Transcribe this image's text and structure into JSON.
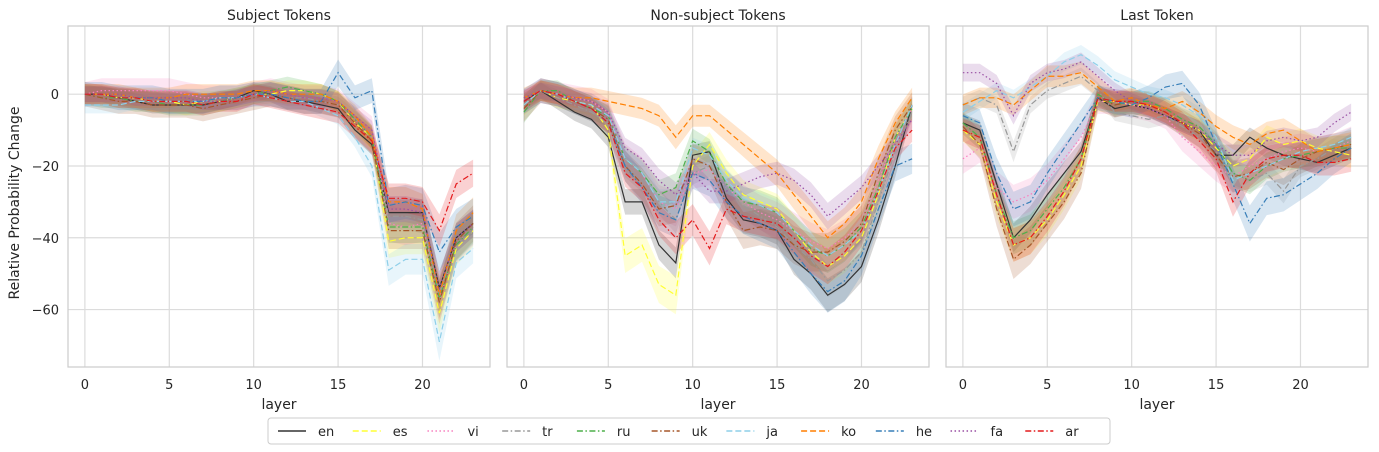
{
  "figure": {
    "ylabel": "Relative Probability Change",
    "xlabel": "layer"
  },
  "chart_data": [
    {
      "type": "line",
      "title": "Subject Tokens",
      "xlabel": "layer",
      "ylabel": "Relative Probability Change",
      "xlim": [
        -1,
        24
      ],
      "ylim": [
        -76,
        19
      ],
      "xticks": [
        0,
        5,
        10,
        15,
        20
      ],
      "yticks": [
        0,
        -20,
        -40,
        -60
      ],
      "grid": true,
      "x": [
        0,
        1,
        2,
        3,
        4,
        5,
        6,
        7,
        8,
        9,
        10,
        11,
        12,
        13,
        14,
        15,
        16,
        17,
        18,
        19,
        20,
        21,
        22,
        23
      ],
      "series": [
        {
          "name": "en",
          "values": [
            0,
            0,
            -1,
            -2,
            -3,
            -3,
            -3,
            -3,
            -2,
            -1,
            1,
            0,
            -2,
            -2,
            -3,
            -4,
            -10,
            -14,
            -33,
            -33,
            -33,
            -54,
            -40,
            -36
          ]
        },
        {
          "name": "es",
          "values": [
            0,
            0,
            -1,
            -1,
            -2,
            -2,
            -3,
            -2,
            -2,
            -1,
            0,
            0,
            1,
            1,
            0,
            -2,
            -8,
            -12,
            -41,
            -40,
            -40,
            -61,
            -43,
            -38
          ]
        },
        {
          "name": "vi",
          "values": [
            0,
            1,
            1,
            1,
            1,
            1,
            0,
            -1,
            -1,
            -1,
            0,
            1,
            0,
            -1,
            -1,
            -2,
            -6,
            -10,
            -36,
            -37,
            -36,
            -57,
            -42,
            -37
          ]
        },
        {
          "name": "tr",
          "values": [
            0,
            0,
            -1,
            -1,
            -2,
            -2,
            -2,
            -2,
            -2,
            -1,
            0,
            0,
            -1,
            -1,
            -2,
            -3,
            -7,
            -12,
            -34,
            -34,
            -35,
            -56,
            -42,
            -38
          ]
        },
        {
          "name": "ru",
          "values": [
            0,
            -1,
            -1,
            -2,
            -2,
            -3,
            -3,
            -3,
            -2,
            -1,
            0,
            1,
            2,
            1,
            0,
            -2,
            -7,
            -12,
            -37,
            -37,
            -37,
            -57,
            -42,
            -37
          ]
        },
        {
          "name": "uk",
          "values": [
            0,
            -1,
            -2,
            -2,
            -3,
            -3,
            -3,
            -4,
            -3,
            -2,
            -1,
            0,
            -1,
            -2,
            -2,
            -3,
            -8,
            -13,
            -38,
            -38,
            -38,
            -58,
            -41,
            -36
          ]
        },
        {
          "name": "ja",
          "values": [
            -3,
            -3,
            -3,
            -2,
            -2,
            -2,
            -2,
            -2,
            -1,
            -1,
            0,
            -1,
            -2,
            -2,
            -4,
            -6,
            -12,
            -20,
            -49,
            -46,
            -46,
            -69,
            -47,
            -43
          ]
        },
        {
          "name": "ko",
          "values": [
            0,
            0,
            0,
            -1,
            -1,
            -1,
            0,
            0,
            0,
            0,
            1,
            1,
            0,
            0,
            0,
            -2,
            -6,
            -12,
            -30,
            -30,
            -32,
            -56,
            -38,
            -33
          ]
        },
        {
          "name": "he",
          "values": [
            0,
            0,
            -1,
            -1,
            -1,
            -2,
            -2,
            -2,
            -1,
            -1,
            0,
            0,
            -1,
            -2,
            -2,
            6,
            -1,
            1,
            -31,
            -30,
            -31,
            -44,
            -37,
            -34
          ]
        },
        {
          "name": "fa",
          "values": [
            0,
            0,
            0,
            -1,
            -1,
            -1,
            -1,
            -2,
            -2,
            -1,
            0,
            1,
            0,
            -1,
            -1,
            -2,
            -6,
            -10,
            -32,
            -32,
            -33,
            -54,
            -40,
            -36
          ]
        },
        {
          "name": "ar",
          "values": [
            0,
            0,
            -1,
            -1,
            -2,
            -2,
            -2,
            -3,
            -2,
            -2,
            0,
            -1,
            -2,
            -3,
            -4,
            -5,
            -9,
            -13,
            -29,
            -29,
            -30,
            -38,
            -25,
            -22
          ]
        }
      ]
    },
    {
      "type": "line",
      "title": "Non-subject Tokens",
      "xlabel": "layer",
      "ylabel": "",
      "xlim": [
        -1,
        24
      ],
      "ylim": [
        -76,
        19
      ],
      "xticks": [
        0,
        5,
        10,
        15,
        20
      ],
      "yticks": [
        0,
        -20,
        -40,
        -60
      ],
      "grid": true,
      "x": [
        0,
        1,
        2,
        3,
        4,
        5,
        6,
        7,
        8,
        9,
        10,
        11,
        12,
        13,
        14,
        15,
        16,
        17,
        18,
        19,
        20,
        21,
        22,
        23
      ],
      "series": [
        {
          "name": "en",
          "values": [
            -2,
            1,
            -2,
            -5,
            -7,
            -12,
            -30,
            -30,
            -42,
            -47,
            -17,
            -16,
            -29,
            -35,
            -36,
            -38,
            -46,
            -50,
            -56,
            -53,
            -48,
            -35,
            -20,
            -3
          ]
        },
        {
          "name": "es",
          "values": [
            -3,
            1,
            -1,
            -2,
            -3,
            -10,
            -45,
            -42,
            -53,
            -56,
            -20,
            -14,
            -22,
            -28,
            -30,
            -32,
            -38,
            -44,
            -48,
            -45,
            -40,
            -28,
            -12,
            -4
          ]
        },
        {
          "name": "vi",
          "values": [
            -2,
            1,
            0,
            -1,
            -2,
            -5,
            -18,
            -22,
            -30,
            -32,
            -22,
            -21,
            -26,
            -30,
            -33,
            -35,
            -38,
            -41,
            -43,
            -40,
            -36,
            -24,
            -12,
            -4
          ]
        },
        {
          "name": "tr",
          "values": [
            -3,
            1,
            -1,
            -3,
            -5,
            -8,
            -20,
            -24,
            -30,
            -35,
            -22,
            -20,
            -26,
            -31,
            -34,
            -37,
            -42,
            -46,
            -52,
            -49,
            -44,
            -30,
            -16,
            -5
          ]
        },
        {
          "name": "ru",
          "values": [
            -5,
            1,
            1,
            -2,
            -4,
            -6,
            -18,
            -22,
            -28,
            -26,
            -13,
            -16,
            -25,
            -30,
            -31,
            -33,
            -38,
            -43,
            -45,
            -42,
            -37,
            -26,
            -12,
            -4
          ]
        },
        {
          "name": "uk",
          "values": [
            -4,
            1,
            0,
            -2,
            -4,
            -7,
            -20,
            -25,
            -32,
            -31,
            -18,
            -20,
            -30,
            -38,
            -37,
            -38,
            -42,
            -44,
            -44,
            -41,
            -36,
            -22,
            -10,
            -3
          ]
        },
        {
          "name": "ja",
          "values": [
            -3,
            1,
            0,
            -2,
            -3,
            -6,
            -18,
            -22,
            -30,
            -30,
            -15,
            -17,
            -24,
            -29,
            -31,
            -33,
            -38,
            -42,
            -45,
            -42,
            -38,
            -27,
            -14,
            -3
          ]
        },
        {
          "name": "ko",
          "values": [
            -1,
            1,
            0,
            -1,
            -1,
            -2,
            -3,
            -4,
            -6,
            -12,
            -6,
            -6,
            -10,
            -14,
            -18,
            -22,
            -28,
            -34,
            -40,
            -36,
            -30,
            -18,
            -8,
            -1
          ]
        },
        {
          "name": "he",
          "values": [
            -2,
            1,
            0,
            -2,
            -4,
            -8,
            -20,
            -26,
            -33,
            -35,
            -22,
            -24,
            -30,
            -34,
            -36,
            -38,
            -44,
            -50,
            -55,
            -52,
            -45,
            -32,
            -20,
            -18
          ]
        },
        {
          "name": "fa",
          "values": [
            -1,
            1,
            0,
            -1,
            -2,
            -5,
            -15,
            -18,
            -24,
            -28,
            -22,
            -27,
            -27,
            -25,
            -23,
            -22,
            -24,
            -28,
            -34,
            -30,
            -26,
            -20,
            -14,
            -7
          ]
        },
        {
          "name": "ar",
          "values": [
            -2,
            1,
            0,
            -2,
            -4,
            -8,
            -22,
            -26,
            -35,
            -40,
            -35,
            -43,
            -32,
            -34,
            -35,
            -36,
            -40,
            -45,
            -48,
            -44,
            -38,
            -27,
            -15,
            -10
          ]
        }
      ]
    },
    {
      "type": "line",
      "title": "Last Token",
      "xlabel": "layer",
      "ylabel": "",
      "xlim": [
        -1,
        24
      ],
      "ylim": [
        -76,
        19
      ],
      "xticks": [
        0,
        5,
        10,
        15,
        20
      ],
      "yticks": [
        0,
        -20,
        -40,
        -60
      ],
      "grid": true,
      "x": [
        0,
        1,
        2,
        3,
        4,
        5,
        6,
        7,
        8,
        9,
        10,
        11,
        12,
        13,
        14,
        15,
        16,
        17,
        18,
        19,
        20,
        21,
        22,
        23
      ],
      "series": [
        {
          "name": "en",
          "values": [
            -8,
            -10,
            -25,
            -40,
            -35,
            -28,
            -22,
            -16,
            -1,
            -4,
            -3,
            -4,
            -6,
            -8,
            -10,
            -17,
            -17,
            -12,
            -15,
            -17,
            -18,
            -19,
            -17,
            -15
          ]
        },
        {
          "name": "es",
          "values": [
            -10,
            -14,
            -30,
            -42,
            -40,
            -35,
            -28,
            -20,
            -2,
            -2,
            -3,
            -3,
            -5,
            -8,
            -10,
            -15,
            -20,
            -18,
            -12,
            -14,
            -13,
            -15,
            -16,
            -17
          ]
        },
        {
          "name": "vi",
          "values": [
            -18,
            -15,
            -26,
            -30,
            -28,
            -24,
            -18,
            -12,
            -2,
            -2,
            -3,
            -4,
            -6,
            -12,
            -16,
            -20,
            -23,
            -20,
            -18,
            -16,
            -15,
            -16,
            -15,
            -13
          ]
        },
        {
          "name": "tr",
          "values": [
            -3,
            -1,
            -3,
            -16,
            -3,
            1,
            3,
            5,
            1,
            -5,
            -6,
            -7,
            -6,
            -9,
            -12,
            -16,
            -22,
            -24,
            -22,
            -27,
            -20,
            -18,
            -15,
            -12
          ]
        },
        {
          "name": "ru",
          "values": [
            -8,
            -12,
            -28,
            -40,
            -38,
            -32,
            -26,
            -18,
            0,
            -3,
            -2,
            -2,
            -4,
            -7,
            -9,
            -14,
            -22,
            -24,
            -20,
            -18,
            -17,
            -16,
            -15,
            -15
          ]
        },
        {
          "name": "uk",
          "values": [
            -9,
            -14,
            -32,
            -46,
            -42,
            -36,
            -30,
            -22,
            -1,
            -3,
            -2,
            -3,
            -5,
            -8,
            -11,
            -17,
            -23,
            -22,
            -19,
            -21,
            -18,
            -16,
            -15,
            -14
          ]
        },
        {
          "name": "ja",
          "values": [
            -5,
            -2,
            1,
            -1,
            2,
            5,
            9,
            11,
            8,
            4,
            2,
            0,
            -1,
            -3,
            -6,
            -12,
            -24,
            -22,
            -20,
            -18,
            -16,
            -15,
            -14,
            -12
          ]
        },
        {
          "name": "ko",
          "values": [
            -3,
            -1,
            -1,
            -3,
            1,
            5,
            5,
            6,
            2,
            -2,
            -1,
            -3,
            -4,
            -2,
            -5,
            -9,
            -12,
            -14,
            -11,
            -10,
            -13,
            -16,
            -15,
            -14
          ]
        },
        {
          "name": "he",
          "values": [
            -6,
            -8,
            -22,
            -32,
            -30,
            -22,
            -15,
            -8,
            -1,
            -2,
            -3,
            -1,
            2,
            3,
            -3,
            -14,
            -25,
            -36,
            -29,
            -28,
            -25,
            -22,
            -18,
            -15
          ]
        },
        {
          "name": "fa",
          "values": [
            6,
            6,
            3,
            -6,
            3,
            6,
            7,
            9,
            5,
            1,
            -2,
            -4,
            -6,
            -8,
            -10,
            -14,
            -17,
            -17,
            -13,
            -12,
            -13,
            -12,
            -8,
            -5
          ]
        },
        {
          "name": "ar",
          "values": [
            -10,
            -12,
            -28,
            -42,
            -40,
            -34,
            -27,
            -18,
            -1,
            -2,
            -2,
            -3,
            -5,
            -8,
            -13,
            -18,
            -30,
            -22,
            -18,
            -17,
            -17,
            -19,
            -19,
            -18
          ]
        }
      ]
    }
  ],
  "legend": {
    "placement": "bottom-center",
    "entries": [
      {
        "name": "en",
        "color": "#333333",
        "dash": "solid"
      },
      {
        "name": "es",
        "color": "#ffff33",
        "dash": "dashed"
      },
      {
        "name": "vi",
        "color": "#f781bf",
        "dash": "dotted"
      },
      {
        "name": "tr",
        "color": "#999999",
        "dash": "dashdot"
      },
      {
        "name": "ru",
        "color": "#4daf4a",
        "dash": "dashdot"
      },
      {
        "name": "uk",
        "color": "#a65628",
        "dash": "dashdot"
      },
      {
        "name": "ja",
        "color": "#8ecfe9",
        "dash": "dashed"
      },
      {
        "name": "ko",
        "color": "#ff7f00",
        "dash": "dashed"
      },
      {
        "name": "he",
        "color": "#377eb8",
        "dash": "dashdot"
      },
      {
        "name": "fa",
        "color": "#984ea3",
        "dash": "dotted"
      },
      {
        "name": "ar",
        "color": "#e41a1c",
        "dash": "dashdot"
      }
    ]
  }
}
